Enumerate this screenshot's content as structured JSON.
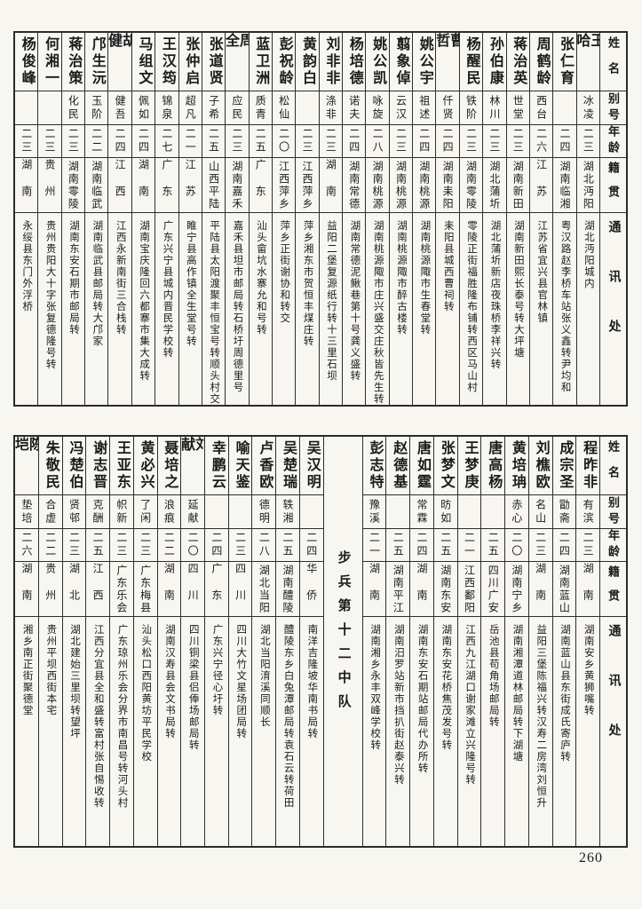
{
  "page": {
    "number": "260"
  },
  "headers": {
    "name": "姓名",
    "alias": "别号",
    "age": "年龄",
    "origin": "籍贯",
    "address": "通讯处"
  },
  "table1": {
    "people": [
      {
        "name": "王哈",
        "alias": "冰凌",
        "age": "二三",
        "origin": "湖北沔阳",
        "address": "湖北沔阳城内"
      },
      {
        "name": "张仁育",
        "alias": "",
        "age": "二四",
        "origin": "湖南临湘",
        "address": "粤汉路赵李桥车站张义鑫转尹均和"
      },
      {
        "name": "周鹤龄",
        "alias": "西台",
        "age": "二六",
        "origin": "江苏",
        "address": "江苏省宜兴县官林镇"
      },
      {
        "name": "蒋治英",
        "alias": "世堂",
        "age": "二三",
        "origin": "湖南新田",
        "address": "湖南新田熙长泰号转大坪塘"
      },
      {
        "name": "孙伯康",
        "alias": "林川",
        "age": "二三",
        "origin": "湖北蒲圻",
        "address": "湖北蒲圻新店夜珠桥李祥兴转"
      },
      {
        "name": "杨醒民",
        "alias": "铁阶",
        "age": "二三",
        "origin": "湖南零陵",
        "address": "零陵正街福胜隆布铺转西区马山村"
      },
      {
        "name": "曹哲",
        "alias": "仟贤",
        "age": "二四",
        "origin": "湖南耒阳",
        "address": "耒阳县城西曹祠转"
      },
      {
        "name": "姚公宇",
        "alias": "祖述",
        "age": "二四",
        "origin": "湖南桃源",
        "address": "湖南桃源陬市生春堂转"
      },
      {
        "name": "翦象倬",
        "alias": "云汉",
        "age": "二三",
        "origin": "湖南桃源",
        "address": "湖南桃源陬市醉古楼转"
      },
      {
        "name": "姚公凯",
        "alias": "咏旋",
        "age": "二八",
        "origin": "湖南桃源",
        "address": "湖南桃源陬市庄兴盛交庄秋皆先生转"
      },
      {
        "name": "杨培德",
        "alias": "诺夫",
        "age": "二四",
        "origin": "湖南常德",
        "address": "湖南常德泥鳅巷第十号龚义盛转"
      },
      {
        "name": "刘非非",
        "alias": "涤非",
        "age": "二三",
        "origin": "湖南",
        "address": "益阳二堡复源纸行转十三里石坝"
      },
      {
        "name": "黄韵白",
        "alias": "",
        "age": "二三",
        "origin": "江西萍乡",
        "address": "萍乡湘东市贺恒丰煤庄转"
      },
      {
        "name": "彭祝龄",
        "alias": "松仙",
        "age": "二〇",
        "origin": "江西萍乡",
        "address": "萍乡正街谢协和转交"
      },
      {
        "name": "蓝卫洲",
        "alias": "质青",
        "age": "二五",
        "origin": "广东",
        "address": "汕头畲坑水寨允和号转"
      },
      {
        "name": "周全",
        "alias": "应民",
        "age": "二三",
        "origin": "湖南嘉禾",
        "address": "嘉禾县坦市邮局转石桥圩周德里号"
      },
      {
        "name": "张道贤",
        "alias": "子希",
        "age": "二五",
        "origin": "山西平陆",
        "address": "平陆县太阳渡聚丰恒宝号转顺头村交"
      },
      {
        "name": "张仲启",
        "alias": "超凡",
        "age": "二一",
        "origin": "江苏",
        "address": "睢宁县高作镇全生堂号转"
      },
      {
        "name": "王汉筠",
        "alias": "锦泉",
        "age": "二七",
        "origin": "广东",
        "address": "广东兴宁县城内晋民学校转"
      },
      {
        "name": "马组文",
        "alias": "佩如",
        "age": "二四",
        "origin": "湖南",
        "address": "湖南宝庆隆回六都寨市集大成转"
      },
      {
        "name": "胡健",
        "alias": "健吾",
        "age": "二四",
        "origin": "江西",
        "address": "江西永新南街三合栈转"
      },
      {
        "name": "邝生沅",
        "alias": "玉阶",
        "age": "二二",
        "origin": "湖南临武",
        "address": "湖南临武县邮局转大邝家"
      },
      {
        "name": "蒋治策",
        "alias": "化民",
        "age": "二三",
        "origin": "湖南零陵",
        "address": "湖南东安石期市邮局转"
      },
      {
        "name": "何湘一",
        "alias": "",
        "age": "二三",
        "origin": "贵州",
        "address": "贵州贵阳大十字张复德隆号转"
      },
      {
        "name": "杨俊峰",
        "alias": "",
        "age": "二三",
        "origin": "湖南",
        "address": "永绥县东门外浮桥"
      }
    ]
  },
  "table2": {
    "unit_label": "步兵第十二中队",
    "people_right": [
      {
        "name": "程昨非",
        "alias": "有滨",
        "age": "二三",
        "origin": "湖南",
        "address": "湖南安乡黄狮嘴转"
      },
      {
        "name": "成宗圣",
        "alias": "勖斋",
        "age": "二四",
        "origin": "湖南蓝山",
        "address": "湖南蓝山县东街成氏寄庐转"
      },
      {
        "name": "刘樵欧",
        "alias": "名山",
        "age": "二三",
        "origin": "湖南",
        "address": "益阳三堡陈福兴转汉寿二房湾刘恒升"
      },
      {
        "name": "黄培珃",
        "alias": "赤心",
        "age": "二〇",
        "origin": "湖南宁乡",
        "address": "湖南湘潭道林邮局转下湖塘"
      },
      {
        "name": "唐高杨",
        "alias": "",
        "age": "二五",
        "origin": "四川广安",
        "address": "岳池县苟角场邮局转"
      },
      {
        "name": "王梦庚",
        "alias": "",
        "age": "二一",
        "origin": "江西鄱阳",
        "address": "江西九江湖口谢家滩立兴隆号转"
      },
      {
        "name": "张梦文",
        "alias": "昉如",
        "age": "二五",
        "origin": "湖南东安",
        "address": "湖南东安花桥焦茂发号转"
      },
      {
        "name": "唐如霆",
        "alias": "常霖",
        "age": "二四",
        "origin": "湖南",
        "address": "湖南东安石期站邮局代办所转"
      },
      {
        "name": "赵德基",
        "alias": "",
        "age": "二五",
        "origin": "湖南平江",
        "address": "湖南汨罗站新市挡扒街赵泰兴转"
      },
      {
        "name": "彭志特",
        "alias": "豫溪",
        "age": "二一",
        "origin": "湖南",
        "address": "湖南湘乡永丰双峰学校转"
      }
    ],
    "people_left": [
      {
        "name": "吴汉明",
        "alias": "",
        "age": "二四",
        "origin": "华侨",
        "address": "南洋吉隆坡华南书局转"
      },
      {
        "name": "吴楚瑞",
        "alias": "轶湘",
        "age": "二五",
        "origin": "湖南醴陵",
        "address": "醴陵东乡白兔潭邮局转袁石云转荷田"
      },
      {
        "name": "卢香欧",
        "alias": "德明",
        "age": "二八",
        "origin": "湖北当阳",
        "address": "湖北当阳淯溪同顺长"
      },
      {
        "name": "喻天鉴",
        "alias": "",
        "age": "二三",
        "origin": "四川",
        "address": "四川大竹文星场团局转"
      },
      {
        "name": "幸鹏云",
        "alias": "",
        "age": "二四",
        "origin": "广东",
        "address": "广东兴宁径心圩转"
      },
      {
        "name": "刘献",
        "alias": "延献",
        "age": "二〇",
        "origin": "四川",
        "address": "四川铜梁县侣俸场邮局转"
      },
      {
        "name": "聂培之",
        "alias": "浪痕",
        "age": "二二",
        "origin": "湖南",
        "address": "湖南汉寿县会文书局转"
      },
      {
        "name": "黄必兴",
        "alias": "了闲",
        "age": "二三",
        "origin": "广东梅县",
        "address": "汕头松口西阳黄坊平民学校"
      },
      {
        "name": "王亚东",
        "alias": "帜新",
        "age": "二三",
        "origin": "广东乐会",
        "address": "广东琼州乐会分界市南昌号转河头村"
      },
      {
        "name": "谢志晋",
        "alias": "克酬",
        "age": "二五",
        "origin": "江西",
        "address": "江西分宜县全和盛转富村张自惕收转"
      },
      {
        "name": "冯楚伯",
        "alias": "贤邨",
        "age": "二三",
        "origin": "湖北",
        "address": "湖北建始三里坝转望坪"
      },
      {
        "name": "朱敬民",
        "alias": "合虚",
        "age": "二二",
        "origin": "贵州",
        "address": "贵州平坝西街本宅"
      },
      {
        "name": "陈垲",
        "alias": "垫培",
        "age": "二六",
        "origin": "湖南",
        "address": "湘乡南正街聚德堂"
      }
    ]
  }
}
